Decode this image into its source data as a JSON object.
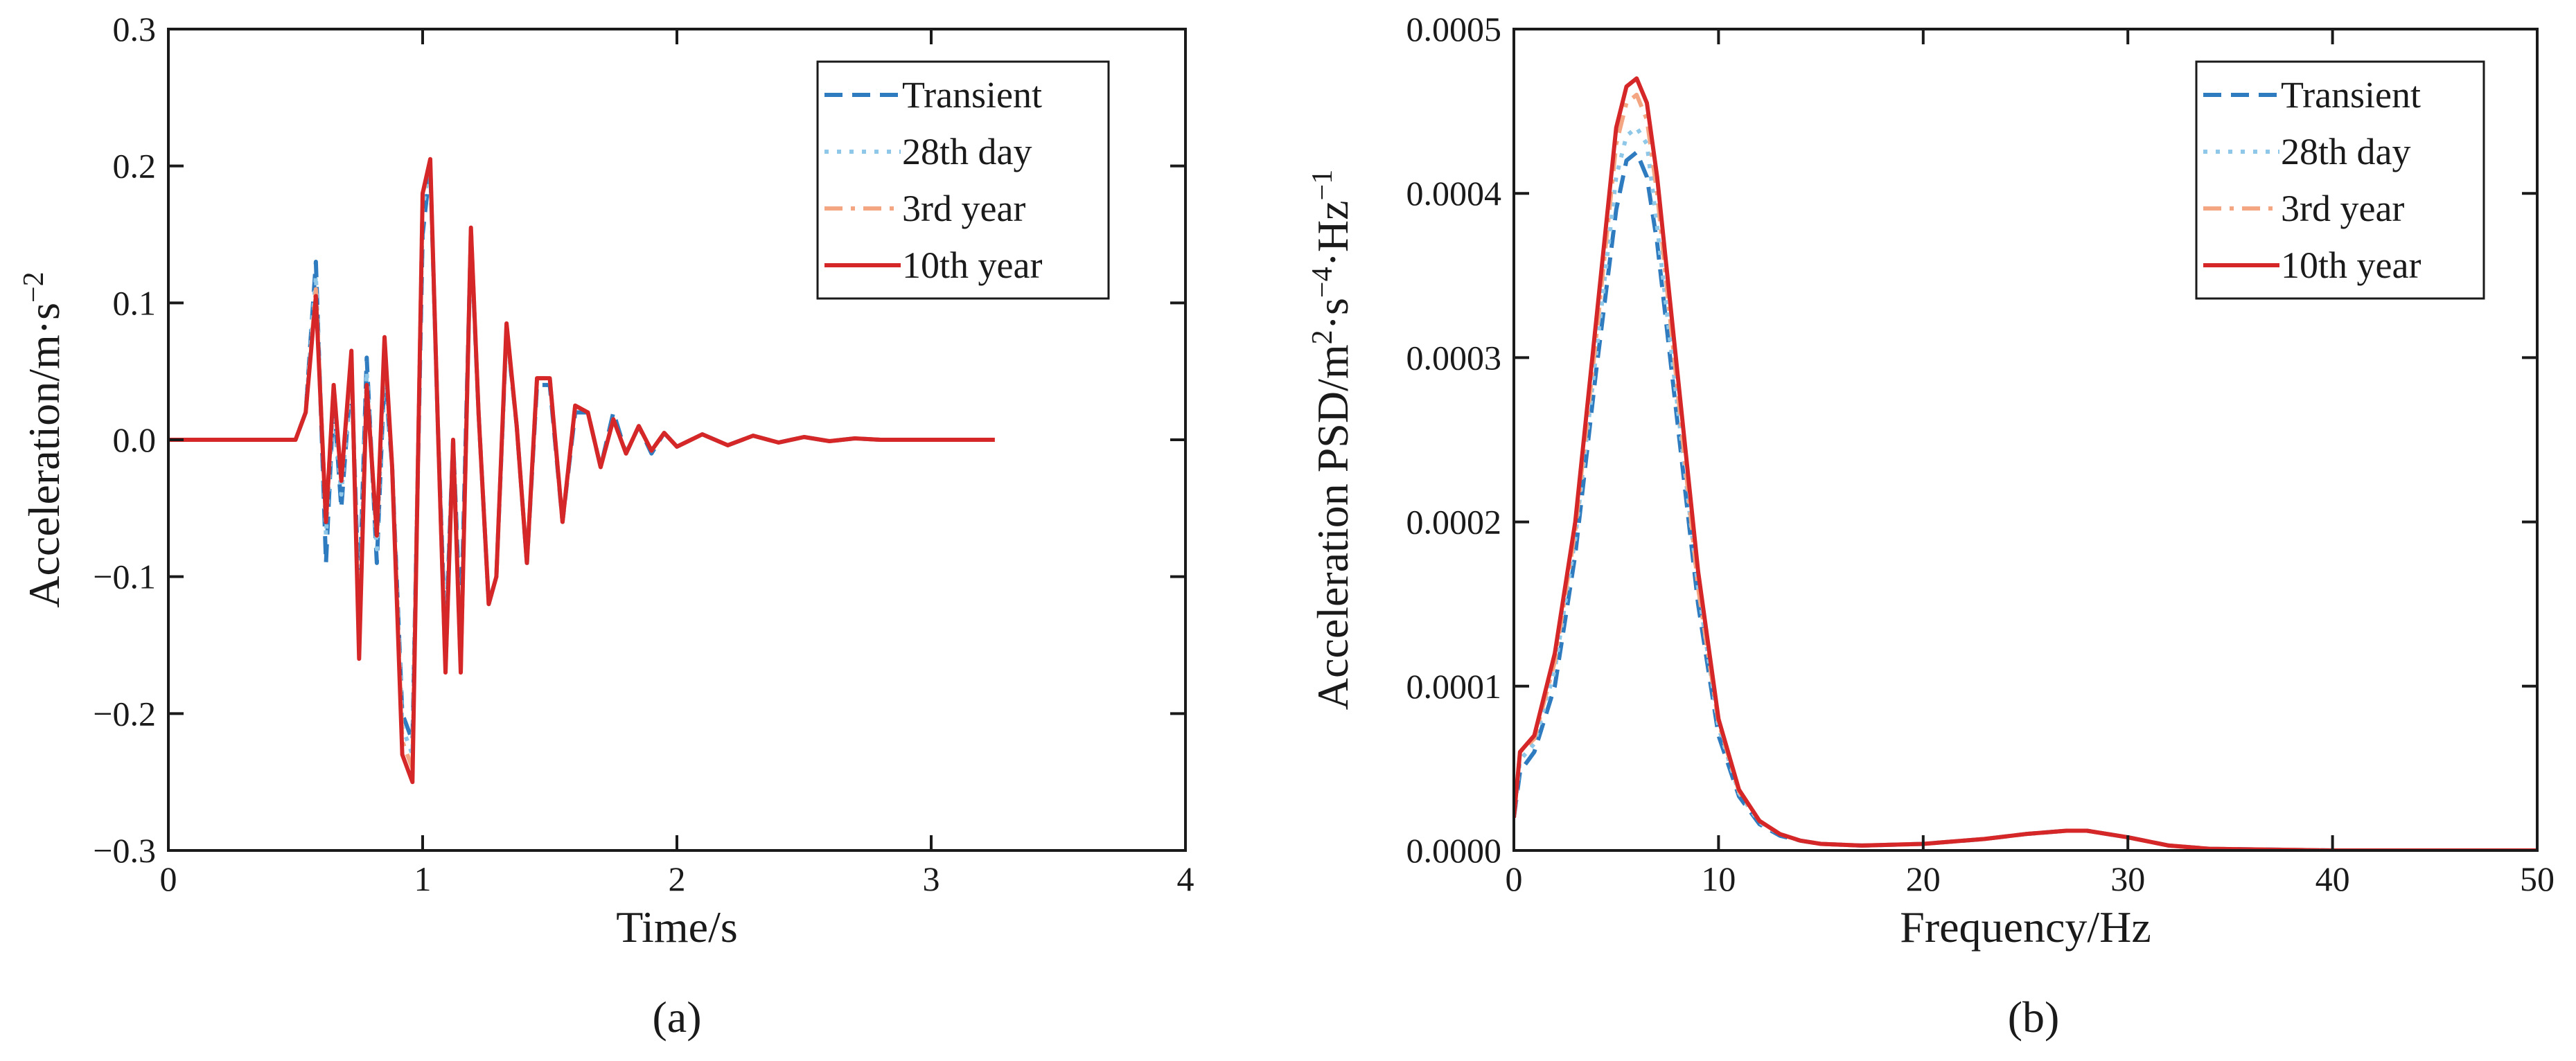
{
  "chart_data": [
    {
      "type": "line",
      "panel_label": "(a)",
      "xlabel": "Time/s",
      "ylabel_main": "Acceleration/m·s",
      "ylabel_exp": "−2",
      "xlim": [
        0,
        4
      ],
      "ylim": [
        -0.3,
        0.3
      ],
      "xticks": [
        0,
        1,
        2,
        3,
        4
      ],
      "yticks": [
        -0.3,
        -0.2,
        -0.1,
        0.0,
        0.1,
        0.2,
        0.3
      ],
      "xtick_labels": [
        "0",
        "1",
        "2",
        "3",
        "4"
      ],
      "ytick_labels": [
        "−0.3",
        "−0.2",
        "−0.1",
        "0.0",
        "0.1",
        "0.2",
        "0.3"
      ],
      "legend_position": "top-right",
      "series": [
        {
          "name": "Transient",
          "color": "#2e7bbf",
          "dash": "dashed",
          "x": [
            0,
            0.5,
            0.54,
            0.58,
            0.62,
            0.65,
            0.68,
            0.72,
            0.75,
            0.78,
            0.82,
            0.85,
            0.88,
            0.92,
            0.96,
            1.0,
            1.03,
            1.06,
            1.09,
            1.12,
            1.15,
            1.19,
            1.22,
            1.26,
            1.29,
            1.33,
            1.37,
            1.41,
            1.45,
            1.5,
            1.55,
            1.6,
            1.65,
            1.7,
            1.75,
            1.8,
            1.85,
            1.9,
            1.95,
            2.0,
            2.1,
            2.2,
            2.3,
            2.4,
            2.5,
            2.6,
            2.7,
            2.8,
            3.25
          ],
          "y": [
            0,
            0,
            0.02,
            0.13,
            -0.09,
            0.03,
            -0.05,
            0.05,
            -0.12,
            0.06,
            -0.09,
            0.05,
            -0.02,
            -0.2,
            -0.22,
            0.15,
            0.2,
            0.01,
            -0.15,
            0.0,
            -0.14,
            0.15,
            0.02,
            -0.12,
            -0.1,
            0.08,
            0.01,
            -0.09,
            0.04,
            0.04,
            -0.06,
            0.02,
            0.02,
            -0.02,
            0.02,
            -0.01,
            0.01,
            -0.01,
            0.005,
            -0.005,
            0.004,
            -0.004,
            0.003,
            -0.002,
            0.002,
            -0.001,
            0.001,
            0,
            0
          ]
        },
        {
          "name": "28th day",
          "color": "#8ec7e8",
          "dash": "dotted",
          "x": [
            0,
            0.5,
            0.54,
            0.58,
            0.62,
            0.65,
            0.68,
            0.72,
            0.75,
            0.78,
            0.82,
            0.85,
            0.88,
            0.92,
            0.96,
            1.0,
            1.03,
            1.06,
            1.09,
            1.12,
            1.15,
            1.19,
            1.22,
            1.26,
            1.29,
            1.33,
            1.37,
            1.41,
            1.45,
            1.5,
            1.55,
            1.6,
            1.65,
            1.7,
            1.75,
            1.8,
            1.85,
            1.9,
            1.95,
            2.0,
            2.1,
            2.2,
            2.3,
            2.4,
            2.5,
            2.6,
            2.7,
            2.8,
            3.25
          ],
          "y": [
            0,
            0,
            0.02,
            0.12,
            -0.07,
            0.03,
            -0.04,
            0.05,
            -0.14,
            0.05,
            -0.08,
            0.06,
            -0.02,
            -0.21,
            -0.23,
            0.17,
            0.2,
            0.01,
            -0.16,
            0.0,
            -0.16,
            0.15,
            0.02,
            -0.12,
            -0.1,
            0.08,
            0.01,
            -0.09,
            0.045,
            0.045,
            -0.06,
            0.025,
            0.02,
            -0.02,
            0.015,
            -0.01,
            0.01,
            -0.008,
            0.005,
            -0.005,
            0.004,
            -0.004,
            0.003,
            -0.002,
            0.002,
            -0.001,
            0.001,
            0,
            0
          ]
        },
        {
          "name": "3rd year",
          "color": "#f4a582",
          "dash": "dashdot",
          "x": [
            0,
            0.5,
            0.54,
            0.58,
            0.62,
            0.65,
            0.68,
            0.72,
            0.75,
            0.78,
            0.82,
            0.85,
            0.88,
            0.92,
            0.96,
            1.0,
            1.03,
            1.06,
            1.09,
            1.12,
            1.15,
            1.19,
            1.22,
            1.26,
            1.29,
            1.33,
            1.37,
            1.41,
            1.45,
            1.5,
            1.55,
            1.6,
            1.65,
            1.7,
            1.75,
            1.8,
            1.85,
            1.9,
            1.95,
            2.0,
            2.1,
            2.2,
            2.3,
            2.4,
            2.5,
            2.6,
            2.7,
            2.8,
            3.25
          ],
          "y": [
            0,
            0,
            0.02,
            0.11,
            -0.06,
            0.04,
            -0.03,
            0.06,
            -0.15,
            0.04,
            -0.07,
            0.07,
            -0.02,
            -0.22,
            -0.24,
            0.18,
            0.2,
            0.01,
            -0.17,
            0.0,
            -0.17,
            0.155,
            0.02,
            -0.12,
            -0.1,
            0.082,
            0.01,
            -0.09,
            0.045,
            0.045,
            -0.06,
            0.025,
            0.02,
            -0.02,
            0.015,
            -0.01,
            0.01,
            -0.008,
            0.005,
            -0.005,
            0.004,
            -0.004,
            0.003,
            -0.002,
            0.002,
            -0.001,
            0.001,
            0,
            0
          ]
        },
        {
          "name": "10th year",
          "color": "#d62728",
          "dash": "solid",
          "x": [
            0,
            0.5,
            0.54,
            0.58,
            0.62,
            0.65,
            0.68,
            0.72,
            0.75,
            0.78,
            0.82,
            0.85,
            0.88,
            0.92,
            0.96,
            1.0,
            1.03,
            1.06,
            1.09,
            1.12,
            1.15,
            1.19,
            1.22,
            1.26,
            1.29,
            1.33,
            1.37,
            1.41,
            1.45,
            1.5,
            1.55,
            1.6,
            1.65,
            1.7,
            1.75,
            1.8,
            1.85,
            1.9,
            1.95,
            2.0,
            2.1,
            2.2,
            2.3,
            2.4,
            2.5,
            2.6,
            2.7,
            2.8,
            3.25
          ],
          "y": [
            0,
            0,
            0.02,
            0.105,
            -0.06,
            0.04,
            -0.03,
            0.065,
            -0.16,
            0.04,
            -0.07,
            0.075,
            -0.02,
            -0.23,
            -0.25,
            0.18,
            0.205,
            0.01,
            -0.17,
            0.0,
            -0.17,
            0.155,
            0.02,
            -0.12,
            -0.1,
            0.085,
            0.01,
            -0.09,
            0.045,
            0.045,
            -0.06,
            0.025,
            0.02,
            -0.02,
            0.015,
            -0.01,
            0.01,
            -0.008,
            0.005,
            -0.005,
            0.004,
            -0.004,
            0.003,
            -0.002,
            0.002,
            -0.001,
            0.001,
            0,
            0
          ]
        }
      ]
    },
    {
      "type": "line",
      "panel_label": "(b)",
      "xlabel": "Frequency/Hz",
      "ylabel_main": "Acceleration PSD/m",
      "ylabel_sup1": "2",
      "ylabel_mid": "·s",
      "ylabel_sup2": "−4",
      "ylabel_mid2": "·Hz",
      "ylabel_sup3": "−1",
      "xlim": [
        0,
        50
      ],
      "ylim": [
        0,
        0.0005
      ],
      "xticks": [
        0,
        10,
        20,
        30,
        40,
        50
      ],
      "yticks": [
        0,
        0.0001,
        0.0002,
        0.0003,
        0.0004,
        0.0005
      ],
      "xtick_labels": [
        "0",
        "10",
        "20",
        "30",
        "40",
        "50"
      ],
      "ytick_labels": [
        "0.0000",
        "0.0001",
        "0.0002",
        "0.0003",
        "0.0004",
        "0.0005"
      ],
      "legend_position": "top-right",
      "series": [
        {
          "name": "Transient",
          "color": "#2e7bbf",
          "dash": "dashed",
          "x": [
            0,
            0.3,
            1,
            2,
            3,
            4,
            5,
            5.5,
            6,
            6.5,
            7,
            8,
            9,
            10,
            11,
            12,
            13,
            14,
            15,
            17,
            20,
            23,
            25,
            27,
            28,
            30,
            32,
            34,
            40,
            50
          ],
          "y": [
            2e-05,
            4.8e-05,
            6e-05,
            0.0001,
            0.00018,
            0.00029,
            0.00039,
            0.00042,
            0.000425,
            0.00041,
            0.00037,
            0.00026,
            0.00015,
            7e-05,
            3.3e-05,
            1.6e-05,
            9e-06,
            6e-06,
            4e-06,
            3e-06,
            4e-06,
            7e-06,
            1e-05,
            1.2e-05,
            1.2e-05,
            8e-06,
            3e-06,
            1e-06,
            0,
            0
          ]
        },
        {
          "name": "28th day",
          "color": "#8ec7e8",
          "dash": "dotted",
          "x": [
            0,
            0.3,
            1,
            2,
            3,
            4,
            5,
            5.5,
            6,
            6.5,
            7,
            8,
            9,
            10,
            11,
            12,
            13,
            14,
            15,
            17,
            20,
            23,
            25,
            27,
            28,
            30,
            32,
            34,
            40,
            50
          ],
          "y": [
            2e-05,
            5.5e-05,
            6.5e-05,
            0.00011,
            0.00019,
            0.0003,
            0.00041,
            0.000435,
            0.00044,
            0.00043,
            0.00038,
            0.00027,
            0.00016,
            7.5e-05,
            3.5e-05,
            1.7e-05,
            1e-05,
            6e-06,
            4e-06,
            3e-06,
            4e-06,
            7e-06,
            1e-05,
            1.2e-05,
            1.2e-05,
            8e-06,
            3e-06,
            1e-06,
            0,
            0
          ]
        },
        {
          "name": "3rd year",
          "color": "#f4a582",
          "dash": "dashdot",
          "x": [
            0,
            0.3,
            1,
            2,
            3,
            4,
            5,
            5.5,
            6,
            6.5,
            7,
            8,
            9,
            10,
            11,
            12,
            13,
            14,
            15,
            17,
            20,
            23,
            25,
            27,
            28,
            30,
            32,
            34,
            40,
            50
          ],
          "y": [
            2e-05,
            6e-05,
            6.8e-05,
            0.000115,
            0.000195,
            0.00031,
            0.00043,
            0.000455,
            0.00046,
            0.000445,
            0.0004,
            0.00028,
            0.00016,
            7.8e-05,
            3.6e-05,
            1.8e-05,
            1e-05,
            6e-06,
            4e-06,
            3e-06,
            4e-06,
            7e-06,
            1e-05,
            1.2e-05,
            1.2e-05,
            8e-06,
            3e-06,
            1e-06,
            0,
            0
          ]
        },
        {
          "name": "10th year",
          "color": "#d62728",
          "dash": "solid",
          "x": [
            0,
            0.3,
            1,
            2,
            3,
            4,
            5,
            5.5,
            6,
            6.5,
            7,
            8,
            9,
            10,
            11,
            12,
            13,
            14,
            15,
            17,
            20,
            23,
            25,
            27,
            28,
            30,
            32,
            34,
            40,
            50
          ],
          "y": [
            2e-05,
            6e-05,
            7e-05,
            0.00012,
            0.0002,
            0.00032,
            0.00044,
            0.000465,
            0.00047,
            0.000455,
            0.00041,
            0.00029,
            0.00017,
            8e-05,
            3.7e-05,
            1.8e-05,
            1e-05,
            6e-06,
            4e-06,
            3e-06,
            4e-06,
            7e-06,
            1e-05,
            1.2e-05,
            1.2e-05,
            8e-06,
            3e-06,
            1e-06,
            0,
            0
          ]
        }
      ]
    }
  ]
}
